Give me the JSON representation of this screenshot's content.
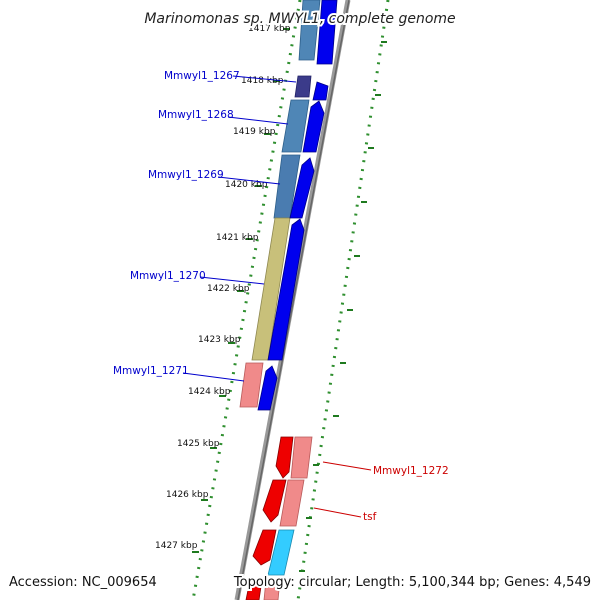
{
  "title": "Marinomonas sp. MWYL1, complete genome",
  "accession_text": "Accession: NC_009654",
  "topology_text": "Topology: circular; Length: 5,100,344 bp; Genes: 4,549",
  "colors": {
    "forward_arrow": "#0000ee",
    "reverse_arrow": "#ee0000",
    "forward_label": "#0000cc",
    "reverse_label": "#cc0000",
    "backbone": "#808080",
    "ruler_dots": "#2f8f2f",
    "ticks": "#1f7a1f"
  },
  "ruler": {
    "ticks": [
      {
        "label": "1417 kbp"
      },
      {
        "label": "1418 kbp"
      },
      {
        "label": "1419 kbp"
      },
      {
        "label": "1420 kbp"
      },
      {
        "label": "1421 kbp"
      },
      {
        "label": "1422 kbp"
      },
      {
        "label": "1423 kbp"
      },
      {
        "label": "1424 kbp"
      },
      {
        "label": "1425 kbp"
      },
      {
        "label": "1426 kbp"
      },
      {
        "label": "1427 kbp"
      }
    ]
  },
  "genes": [
    {
      "label": "Mmwyl1_1267",
      "strand": "forward"
    },
    {
      "label": "Mmwyl1_1268",
      "strand": "forward"
    },
    {
      "label": "Mmwyl1_1269",
      "strand": "forward"
    },
    {
      "label": "Mmwyl1_1270",
      "strand": "forward"
    },
    {
      "label": "Mmwyl1_1271",
      "strand": "forward"
    },
    {
      "label": "Mmwyl1_1272",
      "strand": "reverse"
    },
    {
      "label": "tsf",
      "strand": "reverse"
    }
  ]
}
